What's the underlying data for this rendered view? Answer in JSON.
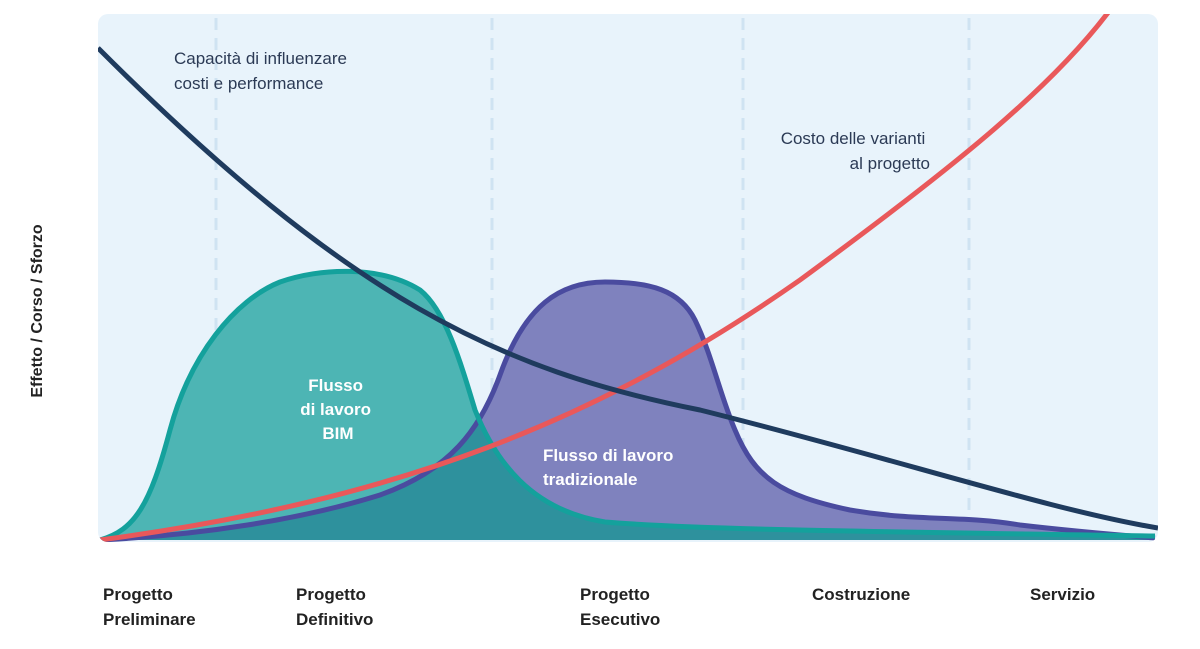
{
  "y_axis_label": "Effetto / Corso / Sforzo",
  "annotations": {
    "influence": [
      "Capacità di influenzare",
      "costi e performance"
    ],
    "change_cost": [
      "Costo delle varianti",
      "al progetto"
    ],
    "bim": [
      "Flusso",
      "di lavoro",
      "BIM"
    ],
    "traditional": [
      "Flusso di lavoro",
      "tradizionale"
    ]
  },
  "phases": [
    {
      "line1": "Progetto",
      "line2": "Preliminare"
    },
    {
      "line1": "Progetto",
      "line2": "Definitivo"
    },
    {
      "line1": "Progetto",
      "line2": "Esecutivo"
    },
    {
      "line1": "Costruzione",
      "line2": ""
    },
    {
      "line1": "Servizio",
      "line2": ""
    }
  ],
  "colors": {
    "panel_bg": "#e8f3fb",
    "divider": "#cfe3f2",
    "influence_curve": "#1f3b5e",
    "change_cost_curve": "#e9585a",
    "bim_fill": "#4db5b4",
    "bim_stroke": "#14a19c",
    "traditional_fill": "#7f82be",
    "traditional_stroke": "#4a4b9f",
    "overlap_fill": "#2e919d",
    "axis_text": "#222222",
    "annotation_text": "#2b3a55",
    "light_text": "#ffffff"
  }
}
